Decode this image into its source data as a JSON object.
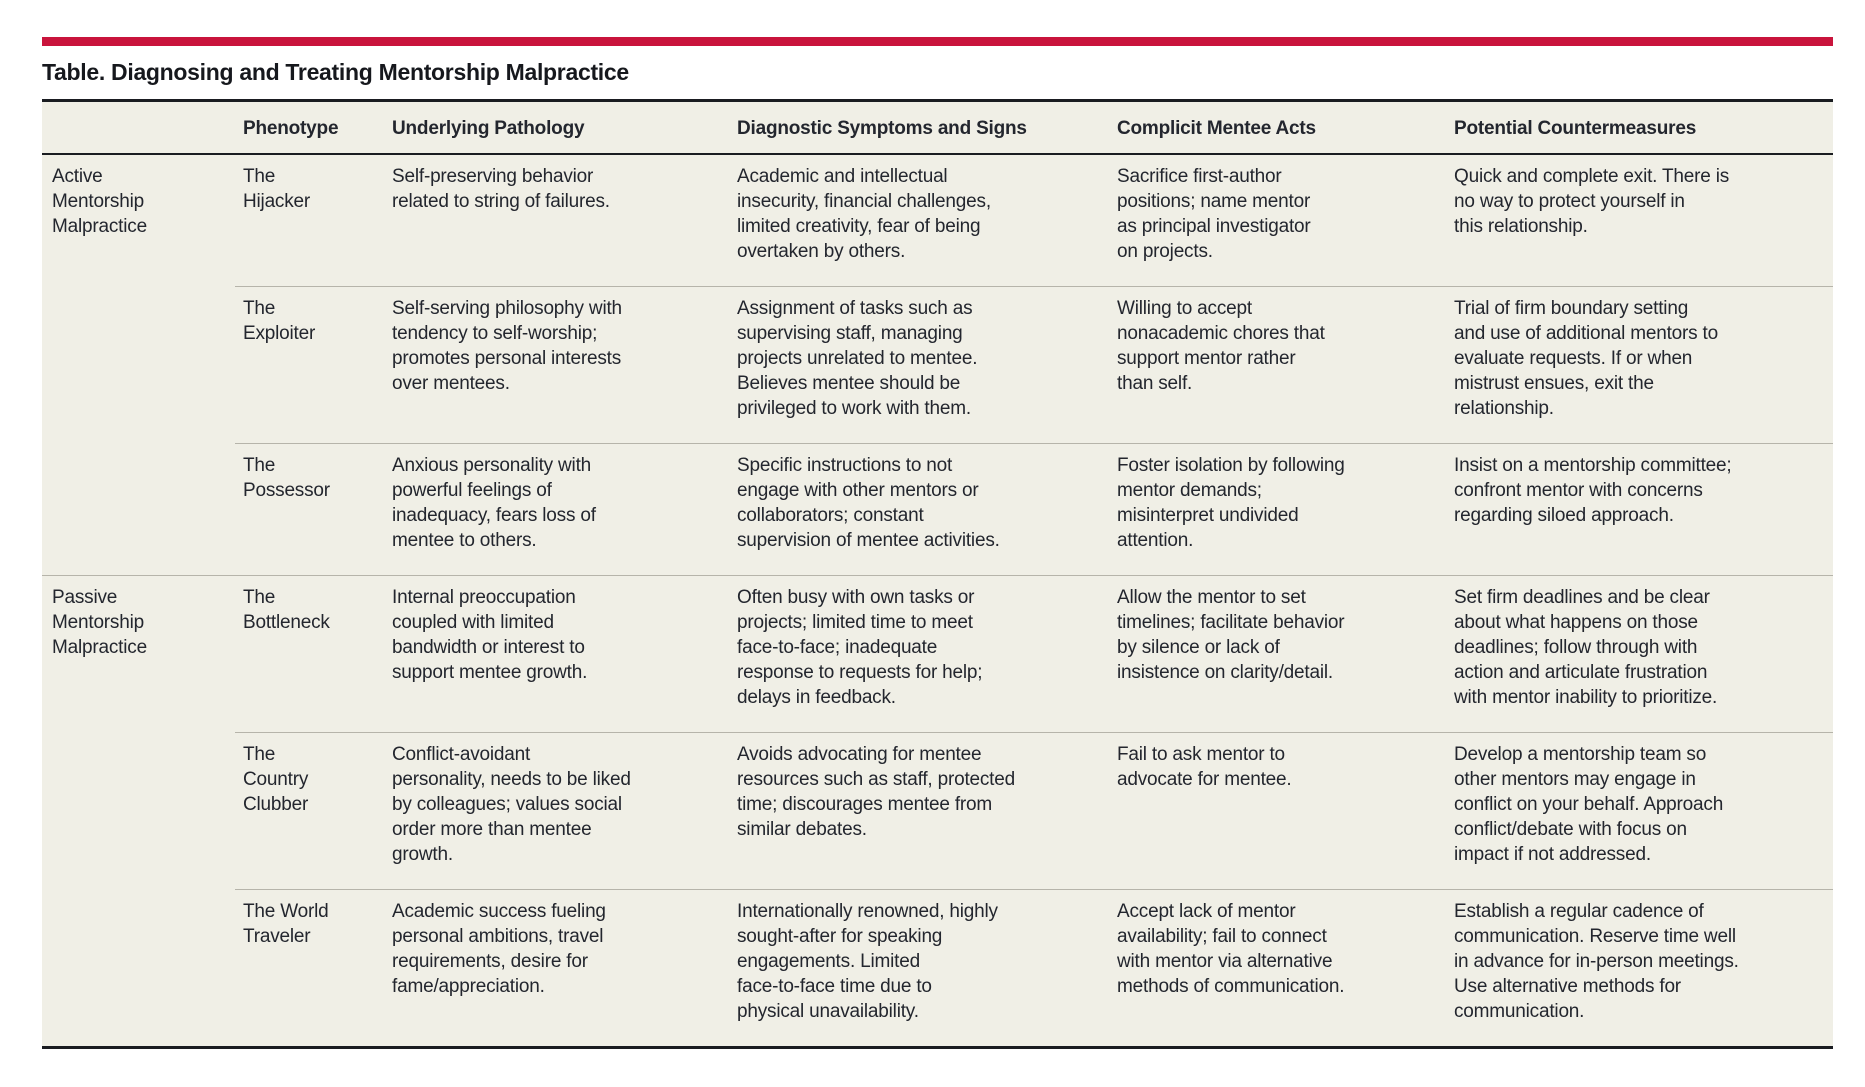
{
  "title": "Table. Diagnosing and Treating Mentorship Malpractice",
  "accent_color": "#c9143c",
  "panel_background": "#f0efe6",
  "table": {
    "headers": [
      "",
      "Phenotype",
      "Underlying Pathology",
      "Diagnostic Symptoms and Signs",
      "Complicit Mentee Acts",
      "Potential Countermeasures"
    ],
    "rows": [
      {
        "group": "Active\nMentorship\nMalpractice",
        "phenotype": "The\nHijacker",
        "underlying_pathology": "Self-preserving behavior\nrelated to string of failures.",
        "diagnostic_symptoms": "Academic and intellectual\ninsecurity, financial challenges,\nlimited creativity, fear of being\novertaken by others.",
        "complicit_mentee_acts": "Sacrifice first-author\npositions; name mentor\nas principal investigator\non projects.",
        "potential_countermeasures": "Quick and complete exit. There is\nno way to protect yourself in\nthis relationship."
      },
      {
        "group": "",
        "phenotype": "The\nExploiter",
        "underlying_pathology": "Self-serving philosophy with\ntendency to self-worship;\npromotes personal interests\nover mentees.",
        "diagnostic_symptoms": "Assignment of tasks such as\nsupervising staff, managing\nprojects unrelated to mentee.\nBelieves mentee should be\nprivileged to work with them.",
        "complicit_mentee_acts": "Willing to accept\nnonacademic chores that\nsupport mentor rather\nthan self.",
        "potential_countermeasures": "Trial of firm boundary setting\nand use of additional mentors to\nevaluate requests. If or when\nmistrust ensues, exit the\nrelationship."
      },
      {
        "group": "",
        "phenotype": "The\nPossessor",
        "underlying_pathology": "Anxious personality with\npowerful feelings of\ninadequacy, fears loss of\nmentee to others.",
        "diagnostic_symptoms": "Specific instructions to not\nengage with other mentors or\ncollaborators; constant\nsupervision of mentee activities.",
        "complicit_mentee_acts": "Foster isolation by following\nmentor demands;\nmisinterpret undivided\nattention.",
        "potential_countermeasures": "Insist on a mentorship committee;\nconfront mentor with concerns\nregarding siloed approach."
      },
      {
        "group": "Passive\nMentorship\nMalpractice",
        "phenotype": "The\nBottleneck",
        "underlying_pathology": "Internal preoccupation\ncoupled with limited\nbandwidth or interest to\nsupport mentee growth.",
        "diagnostic_symptoms": "Often busy with own tasks or\nprojects; limited time to meet\nface-to-face; inadequate\nresponse to requests for help;\ndelays in feedback.",
        "complicit_mentee_acts": "Allow the mentor to set\ntimelines; facilitate behavior\nby silence or lack of\ninsistence on clarity/detail.",
        "potential_countermeasures": "Set firm deadlines and be clear\nabout what happens on those\ndeadlines; follow through with\naction and articulate frustration\nwith mentor inability to prioritize."
      },
      {
        "group": "",
        "phenotype": "The\nCountry\nClubber",
        "underlying_pathology": "Conflict-avoidant\npersonality, needs to be liked\nby colleagues; values social\norder more than mentee\ngrowth.",
        "diagnostic_symptoms": "Avoids advocating for mentee\nresources such as staff, protected\ntime; discourages mentee from\nsimilar debates.",
        "complicit_mentee_acts": "Fail to ask mentor to\nadvocate for mentee.",
        "potential_countermeasures": "Develop a mentorship team so\nother mentors may engage in\nconflict on your behalf. Approach\nconflict/debate with focus on\nimpact if not addressed."
      },
      {
        "group": "",
        "phenotype": "The World\nTraveler",
        "underlying_pathology": "Academic success fueling\npersonal ambitions, travel\nrequirements, desire for\nfame/appreciation.",
        "diagnostic_symptoms": "Internationally renowned, highly\nsought-after for speaking\nengagements. Limited\nface-to-face time due to\nphysical unavailability.",
        "complicit_mentee_acts": "Accept lack of mentor\navailability; fail to connect\nwith mentor via alternative\nmethods of communication.",
        "potential_countermeasures": "Establish a regular cadence of\ncommunication. Reserve time well\nin advance for in-person meetings.\nUse alternative methods for\ncommunication."
      }
    ]
  }
}
